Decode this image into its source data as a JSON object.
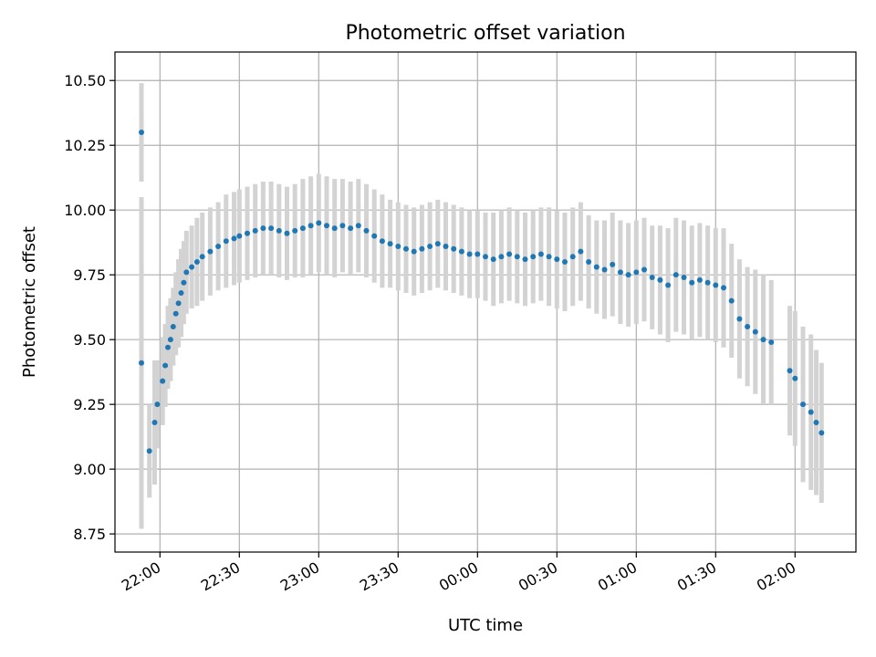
{
  "chart_data": {
    "type": "scatter",
    "title": "Photometric offset variation",
    "xlabel": "UTC time",
    "ylabel": "Photometric offset",
    "grid": true,
    "ylim": [
      8.68,
      10.61
    ],
    "y_ticks": [
      "8.75",
      "9.00",
      "9.25",
      "9.50",
      "9.75",
      "10.00",
      "10.25",
      "10.50"
    ],
    "xlim": [
      "21:43",
      "02:23"
    ],
    "x_ticks": [
      "22:00",
      "22:30",
      "23:00",
      "23:30",
      "00:00",
      "00:30",
      "01:00",
      "01:30",
      "02:00"
    ],
    "colors": {
      "points": "#1f77b4",
      "error_bars": "#d3d3d3",
      "grid": "#b0b0b0"
    },
    "series": [
      {
        "error_bars": true,
        "x": [
          "21:53",
          "21:53",
          "21:56",
          "21:58",
          "21:59",
          "22:01",
          "22:02",
          "22:03",
          "22:04",
          "22:05",
          "22:06",
          "22:07",
          "22:08",
          "22:09",
          "22:10",
          "22:12",
          "22:14",
          "22:16",
          "22:19",
          "22:22",
          "22:25",
          "22:28",
          "22:30",
          "22:33",
          "22:36",
          "22:39",
          "22:42",
          "22:45",
          "22:48",
          "22:51",
          "22:54",
          "22:57",
          "23:00",
          "23:03",
          "23:06",
          "23:09",
          "23:12",
          "23:15",
          "23:18",
          "23:21",
          "23:24",
          "23:27",
          "23:30",
          "23:33",
          "23:36",
          "23:39",
          "23:42",
          "23:45",
          "23:48",
          "23:51",
          "23:54",
          "23:57",
          "00:00",
          "00:03",
          "00:06",
          "00:09",
          "00:12",
          "00:15",
          "00:18",
          "00:21",
          "00:24",
          "00:27",
          "00:30",
          "00:33",
          "00:36",
          "00:39",
          "00:42",
          "00:45",
          "00:48",
          "00:51",
          "00:54",
          "00:57",
          "01:00",
          "01:03",
          "01:06",
          "01:09",
          "01:12",
          "01:15",
          "01:18",
          "01:21",
          "01:24",
          "01:27",
          "01:30",
          "01:33",
          "01:36",
          "01:39",
          "01:42",
          "01:45",
          "01:48",
          "01:51",
          "01:58",
          "02:00",
          "02:03",
          "02:06",
          "02:08",
          "02:10"
        ],
        "y": [
          10.3,
          9.41,
          9.07,
          9.18,
          9.25,
          9.34,
          9.4,
          9.47,
          9.5,
          9.55,
          9.6,
          9.64,
          9.68,
          9.72,
          9.76,
          9.78,
          9.8,
          9.82,
          9.84,
          9.86,
          9.88,
          9.89,
          9.9,
          9.91,
          9.92,
          9.93,
          9.93,
          9.92,
          9.91,
          9.92,
          9.93,
          9.94,
          9.95,
          9.94,
          9.93,
          9.94,
          9.93,
          9.94,
          9.92,
          9.9,
          9.88,
          9.87,
          9.86,
          9.85,
          9.84,
          9.85,
          9.86,
          9.87,
          9.86,
          9.85,
          9.84,
          9.83,
          9.83,
          9.82,
          9.81,
          9.82,
          9.83,
          9.82,
          9.81,
          9.82,
          9.83,
          9.82,
          9.81,
          9.8,
          9.82,
          9.84,
          9.8,
          9.78,
          9.77,
          9.79,
          9.76,
          9.75,
          9.76,
          9.77,
          9.74,
          9.73,
          9.71,
          9.75,
          9.74,
          9.72,
          9.73,
          9.72,
          9.71,
          9.7,
          9.65,
          9.58,
          9.55,
          9.53,
          9.5,
          9.49,
          9.38,
          9.35,
          9.25,
          9.22,
          9.18,
          9.14
        ],
        "error": [
          0.19,
          0.64,
          0.18,
          0.24,
          0.17,
          0.17,
          0.16,
          0.16,
          0.16,
          0.15,
          0.16,
          0.17,
          0.17,
          0.16,
          0.16,
          0.16,
          0.17,
          0.17,
          0.17,
          0.17,
          0.18,
          0.18,
          0.18,
          0.18,
          0.18,
          0.18,
          0.18,
          0.18,
          0.18,
          0.18,
          0.19,
          0.19,
          0.19,
          0.19,
          0.19,
          0.18,
          0.18,
          0.18,
          0.18,
          0.18,
          0.18,
          0.17,
          0.17,
          0.17,
          0.17,
          0.17,
          0.17,
          0.17,
          0.17,
          0.17,
          0.17,
          0.17,
          0.17,
          0.17,
          0.18,
          0.18,
          0.18,
          0.18,
          0.18,
          0.18,
          0.18,
          0.19,
          0.19,
          0.19,
          0.19,
          0.19,
          0.18,
          0.18,
          0.19,
          0.2,
          0.2,
          0.2,
          0.2,
          0.2,
          0.2,
          0.21,
          0.22,
          0.22,
          0.22,
          0.22,
          0.22,
          0.22,
          0.22,
          0.23,
          0.22,
          0.23,
          0.23,
          0.24,
          0.25,
          0.24,
          0.25,
          0.26,
          0.3,
          0.3,
          0.28,
          0.27
        ]
      }
    ]
  }
}
